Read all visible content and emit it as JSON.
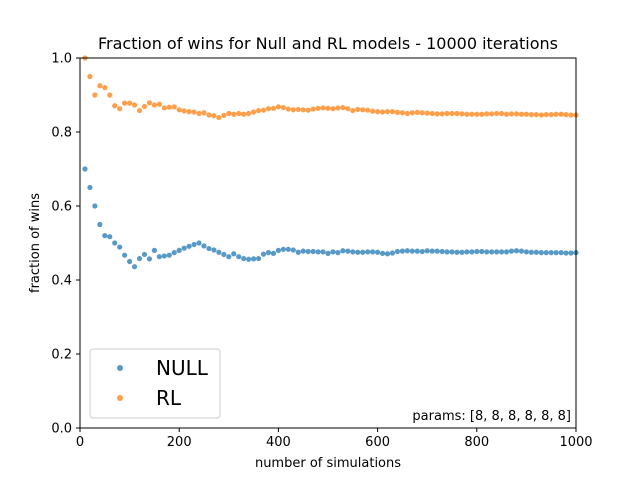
{
  "chart_data": {
    "type": "scatter",
    "title": "Fraction of wins for Null and RL models - 10000 iterations",
    "xlabel": "number of simulations",
    "ylabel": "fraction of wins",
    "xlim": [
      0,
      1000
    ],
    "ylim": [
      0.0,
      1.0
    ],
    "xticks": [
      "0",
      "200",
      "400",
      "600",
      "800",
      "1000"
    ],
    "yticks": [
      "0.0",
      "0.2",
      "0.4",
      "0.6",
      "0.8",
      "1.0"
    ],
    "grid": false,
    "legend_position": "lower-left",
    "annotation": "params: [8, 8, 8, 8, 8, 8]",
    "x": [
      10,
      20,
      30,
      40,
      50,
      60,
      70,
      80,
      90,
      100,
      110,
      120,
      130,
      140,
      150,
      160,
      170,
      180,
      190,
      200,
      210,
      220,
      230,
      240,
      250,
      260,
      270,
      280,
      290,
      300,
      310,
      320,
      330,
      340,
      350,
      360,
      370,
      380,
      390,
      400,
      410,
      420,
      430,
      440,
      450,
      460,
      470,
      480,
      490,
      500,
      510,
      520,
      530,
      540,
      550,
      560,
      570,
      580,
      590,
      600,
      610,
      620,
      630,
      640,
      650,
      660,
      670,
      680,
      690,
      700,
      710,
      720,
      730,
      740,
      750,
      760,
      770,
      780,
      790,
      800,
      810,
      820,
      830,
      840,
      850,
      860,
      870,
      880,
      890,
      900,
      910,
      920,
      930,
      940,
      950,
      960,
      970,
      980,
      990,
      1000
    ],
    "series": [
      {
        "name": "NULL",
        "color": "#1f77b4",
        "values": [
          0.7,
          0.65,
          0.6,
          0.55,
          0.52,
          0.517,
          0.5,
          0.489,
          0.467,
          0.45,
          0.436,
          0.458,
          0.469,
          0.457,
          0.48,
          0.463,
          0.465,
          0.467,
          0.474,
          0.48,
          0.486,
          0.491,
          0.496,
          0.5,
          0.492,
          0.485,
          0.481,
          0.475,
          0.469,
          0.463,
          0.471,
          0.463,
          0.458,
          0.456,
          0.457,
          0.458,
          0.47,
          0.474,
          0.472,
          0.48,
          0.483,
          0.483,
          0.481,
          0.475,
          0.478,
          0.477,
          0.477,
          0.476,
          0.476,
          0.472,
          0.476,
          0.474,
          0.479,
          0.478,
          0.476,
          0.475,
          0.475,
          0.476,
          0.476,
          0.475,
          0.472,
          0.471,
          0.473,
          0.477,
          0.478,
          0.479,
          0.478,
          0.478,
          0.477,
          0.479,
          0.478,
          0.478,
          0.477,
          0.476,
          0.476,
          0.475,
          0.475,
          0.476,
          0.476,
          0.477,
          0.477,
          0.476,
          0.476,
          0.476,
          0.476,
          0.476,
          0.478,
          0.479,
          0.478,
          0.476,
          0.475,
          0.475,
          0.474,
          0.474,
          0.474,
          0.474,
          0.474,
          0.473,
          0.473,
          0.474
        ]
      },
      {
        "name": "RL",
        "color": "#ff7f0e",
        "values": [
          1.0,
          0.95,
          0.9,
          0.925,
          0.92,
          0.9,
          0.871,
          0.863,
          0.878,
          0.878,
          0.873,
          0.858,
          0.869,
          0.879,
          0.873,
          0.875,
          0.865,
          0.867,
          0.868,
          0.86,
          0.857,
          0.855,
          0.854,
          0.85,
          0.852,
          0.846,
          0.844,
          0.839,
          0.845,
          0.85,
          0.848,
          0.85,
          0.848,
          0.85,
          0.854,
          0.858,
          0.859,
          0.863,
          0.864,
          0.868,
          0.866,
          0.862,
          0.86,
          0.861,
          0.86,
          0.859,
          0.862,
          0.864,
          0.865,
          0.864,
          0.863,
          0.865,
          0.866,
          0.863,
          0.858,
          0.861,
          0.86,
          0.859,
          0.856,
          0.855,
          0.854,
          0.855,
          0.855,
          0.853,
          0.852,
          0.85,
          0.852,
          0.853,
          0.852,
          0.851,
          0.85,
          0.849,
          0.849,
          0.85,
          0.85,
          0.85,
          0.849,
          0.848,
          0.848,
          0.848,
          0.848,
          0.849,
          0.849,
          0.85,
          0.85,
          0.848,
          0.849,
          0.849,
          0.848,
          0.848,
          0.847,
          0.847,
          0.846,
          0.847,
          0.847,
          0.848,
          0.848,
          0.847,
          0.846,
          0.846
        ]
      }
    ]
  }
}
